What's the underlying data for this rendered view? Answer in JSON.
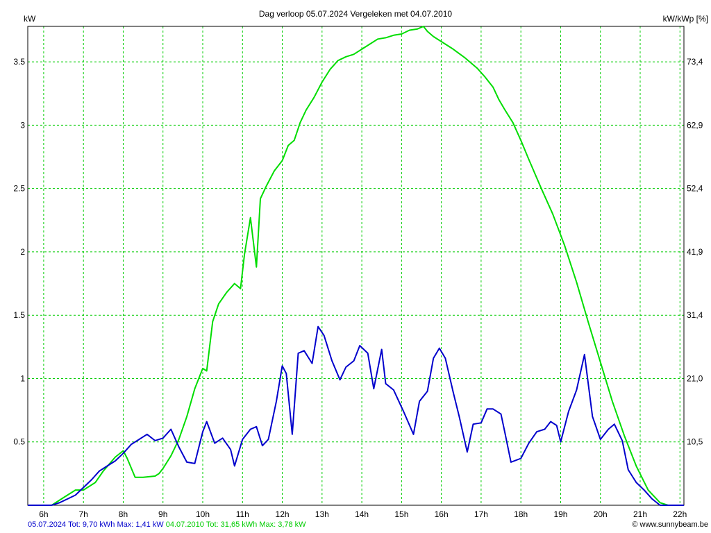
{
  "title": "Dag  verloop 05.07.2024   Vergeleken met 04.07.2010",
  "left_axis_unit": "kW",
  "right_axis_unit": "kW/kWp [%]",
  "copyright": "© www.sunnybeam.be",
  "footer": {
    "series1": {
      "date": "05.07.2024",
      "tot": "Tot: 9,70 kWh",
      "max": "Max: 1,41 kW",
      "color": "#0000cc"
    },
    "series2": {
      "date": "04.07.2010",
      "tot": "Tot: 31,65 kWh",
      "max": "Max: 3,78 kW",
      "color": "#00dd00"
    }
  },
  "chart_data": {
    "type": "line",
    "title": "Dag  verloop 05.07.2024   Vergeleken met 04.07.2010",
    "ylabel": "kW",
    "y2label": "kW/kWp [%]",
    "xlim": [
      5.6,
      22.1
    ],
    "ylim": [
      0,
      3.78
    ],
    "grid": true,
    "x_ticks": [
      6,
      7,
      8,
      9,
      10,
      11,
      12,
      13,
      14,
      15,
      16,
      17,
      18,
      19,
      20,
      21,
      22
    ],
    "x_tick_labels": [
      "6h",
      "7h",
      "8h",
      "9h",
      "10h",
      "11h",
      "12h",
      "13h",
      "14h",
      "15h",
      "16h",
      "17h",
      "18h",
      "19h",
      "20h",
      "21h",
      "22h"
    ],
    "y_ticks": [
      0.5,
      1,
      1.5,
      2,
      2.5,
      3,
      3.5
    ],
    "y_tick_labels": [
      "0.5",
      "1",
      "1.5",
      "2",
      "2.5",
      "3",
      "3.5"
    ],
    "y2_tick_labels": [
      "10,5",
      "21,0",
      "31,4",
      "41,9",
      "52,4",
      "62,9",
      "73,4"
    ],
    "series": [
      {
        "name": "05.07.2024",
        "color": "#0000cc",
        "x": [
          5.6,
          6.2,
          6.4,
          6.6,
          6.8,
          7.0,
          7.2,
          7.4,
          7.6,
          7.8,
          8.0,
          8.2,
          8.4,
          8.6,
          8.8,
          9.0,
          9.2,
          9.4,
          9.6,
          9.8,
          10.0,
          10.1,
          10.3,
          10.5,
          10.7,
          10.8,
          11.0,
          11.2,
          11.35,
          11.5,
          11.65,
          11.85,
          12.0,
          12.1,
          12.25,
          12.4,
          12.55,
          12.75,
          12.9,
          13.05,
          13.25,
          13.45,
          13.6,
          13.8,
          13.95,
          14.15,
          14.3,
          14.5,
          14.6,
          14.8,
          15.05,
          15.3,
          15.45,
          15.65,
          15.8,
          15.95,
          16.1,
          16.3,
          16.45,
          16.65,
          16.8,
          17.0,
          17.15,
          17.3,
          17.5,
          17.6,
          17.75,
          18.0,
          18.2,
          18.4,
          18.6,
          18.75,
          18.9,
          19.0,
          19.2,
          19.4,
          19.6,
          19.8,
          20.0,
          20.2,
          20.35,
          20.55,
          20.7,
          20.9,
          21.1,
          21.3,
          21.5,
          22.1
        ],
        "y": [
          0,
          0,
          0.02,
          0.05,
          0.08,
          0.14,
          0.2,
          0.27,
          0.31,
          0.35,
          0.41,
          0.48,
          0.52,
          0.56,
          0.51,
          0.53,
          0.6,
          0.46,
          0.34,
          0.33,
          0.58,
          0.66,
          0.49,
          0.53,
          0.44,
          0.31,
          0.52,
          0.6,
          0.62,
          0.47,
          0.52,
          0.82,
          1.1,
          1.04,
          0.56,
          1.2,
          1.22,
          1.12,
          1.41,
          1.34,
          1.14,
          0.99,
          1.09,
          1.14,
          1.26,
          1.2,
          0.92,
          1.23,
          0.96,
          0.91,
          0.74,
          0.56,
          0.82,
          0.9,
          1.16,
          1.24,
          1.16,
          0.89,
          0.7,
          0.42,
          0.64,
          0.65,
          0.76,
          0.76,
          0.72,
          0.57,
          0.34,
          0.37,
          0.49,
          0.58,
          0.6,
          0.66,
          0.63,
          0.5,
          0.74,
          0.91,
          1.19,
          0.7,
          0.52,
          0.6,
          0.64,
          0.51,
          0.28,
          0.18,
          0.12,
          0.05,
          0,
          0
        ]
      },
      {
        "name": "04.07.2010",
        "color": "#00dd00",
        "x": [
          5.6,
          6.2,
          6.5,
          6.8,
          7.0,
          7.3,
          7.5,
          7.8,
          8.0,
          8.1,
          8.3,
          8.5,
          8.8,
          8.9,
          9.0,
          9.2,
          9.4,
          9.6,
          9.8,
          10.0,
          10.1,
          10.25,
          10.4,
          10.6,
          10.8,
          10.95,
          11.05,
          11.2,
          11.35,
          11.45,
          11.6,
          11.8,
          12.0,
          12.15,
          12.3,
          12.45,
          12.6,
          12.8,
          13.0,
          13.2,
          13.4,
          13.6,
          13.8,
          14.0,
          14.2,
          14.4,
          14.6,
          14.8,
          15.0,
          15.2,
          15.4,
          15.55,
          15.65,
          15.8,
          16.0,
          16.3,
          16.6,
          16.9,
          17.1,
          17.3,
          17.45,
          17.6,
          17.8,
          18.0,
          18.2,
          18.5,
          18.8,
          19.1,
          19.4,
          19.7,
          20.0,
          20.3,
          20.6,
          20.9,
          21.2,
          21.5,
          21.7,
          21.85,
          22.1
        ],
        "y": [
          0,
          0,
          0.06,
          0.12,
          0.12,
          0.18,
          0.27,
          0.38,
          0.43,
          0.37,
          0.22,
          0.22,
          0.23,
          0.25,
          0.29,
          0.39,
          0.52,
          0.7,
          0.92,
          1.08,
          1.06,
          1.45,
          1.59,
          1.68,
          1.75,
          1.71,
          1.98,
          2.27,
          1.88,
          2.42,
          2.52,
          2.64,
          2.72,
          2.84,
          2.88,
          3.02,
          3.12,
          3.22,
          3.34,
          3.44,
          3.51,
          3.54,
          3.56,
          3.6,
          3.64,
          3.68,
          3.69,
          3.71,
          3.72,
          3.75,
          3.76,
          3.78,
          3.74,
          3.7,
          3.66,
          3.6,
          3.53,
          3.45,
          3.38,
          3.3,
          3.2,
          3.12,
          3.02,
          2.88,
          2.73,
          2.51,
          2.3,
          2.05,
          1.76,
          1.44,
          1.13,
          0.82,
          0.55,
          0.31,
          0.12,
          0.02,
          0,
          0,
          0
        ]
      }
    ]
  }
}
